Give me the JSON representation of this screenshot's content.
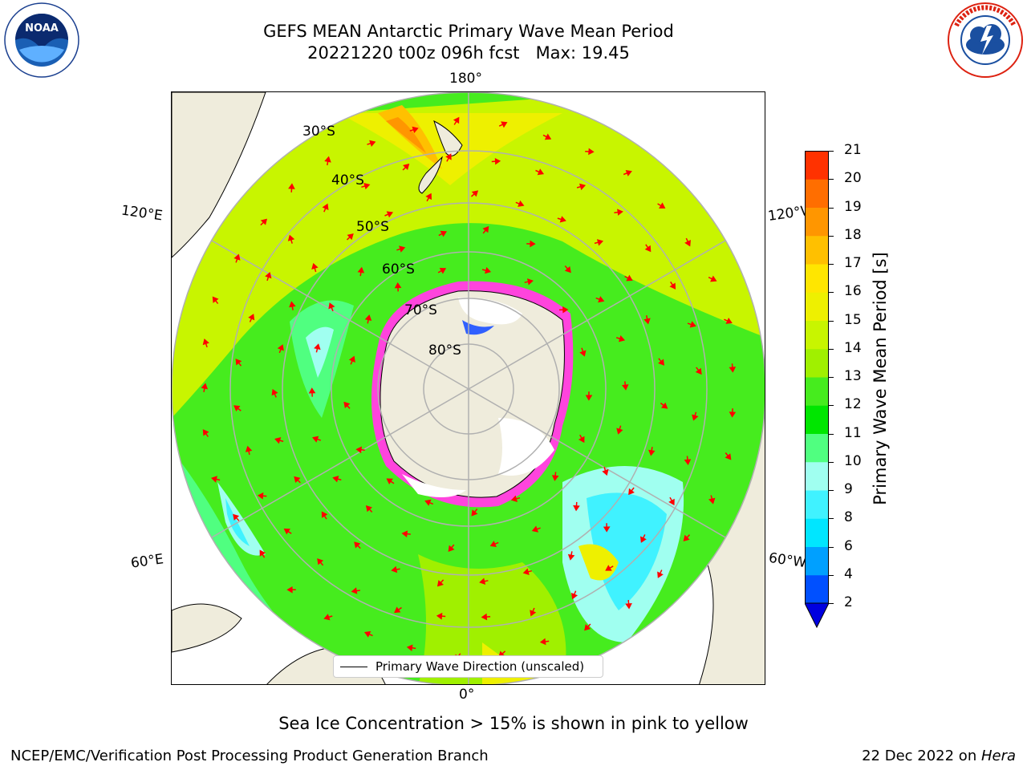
{
  "header": {
    "title_line1": "GEFS MEAN Antarctic Primary Wave Mean Period",
    "title_line2": "20221220 t00z 096h fcst   Max: 19.45"
  },
  "logos": {
    "left": "NOAA",
    "right": "NATIONAL WEATHER SERVICE"
  },
  "map": {
    "projection": "south-polar-stereographic",
    "lon_labels": {
      "top": "180°",
      "bottom": "0°",
      "upper_left": "120°E",
      "upper_right": "120°W",
      "lower_left": "60°E",
      "lower_right": "60°W"
    },
    "lat_labels": [
      "30°S",
      "40°S",
      "50°S",
      "60°S",
      "70°S",
      "80°S"
    ],
    "legend": {
      "label": "Primary Wave Direction (unscaled)"
    },
    "colors": {
      "land": "#efecdc",
      "arrow": "#ff0000",
      "ice": "#ff44dd",
      "grid": "#b0b0b0"
    }
  },
  "colorbar": {
    "label": "Primary Wave Mean Period [s]",
    "ticks": [
      "2",
      "4",
      "6",
      "8",
      "9",
      "10",
      "11",
      "12",
      "13",
      "14",
      "15",
      "16",
      "17",
      "18",
      "19",
      "20",
      "21"
    ],
    "colors": [
      "#0050ff",
      "#00a0ff",
      "#00e6ff",
      "#40f2ff",
      "#a0fff0",
      "#50ff80",
      "#00e600",
      "#46ec1e",
      "#a0f000",
      "#c8f500",
      "#eef000",
      "#ffe600",
      "#ffc000",
      "#ff9600",
      "#ff6e00",
      "#ff3200"
    ],
    "extend_color": "#0000e0"
  },
  "subtitle": "Sea Ice Concentration > 15% is shown in pink to yellow",
  "footer": {
    "left": "NCEP/EMC/Verification Post Processing Product Generation Branch",
    "right_prefix": "22 Dec 2022 on ",
    "right_machine": "Hera"
  }
}
